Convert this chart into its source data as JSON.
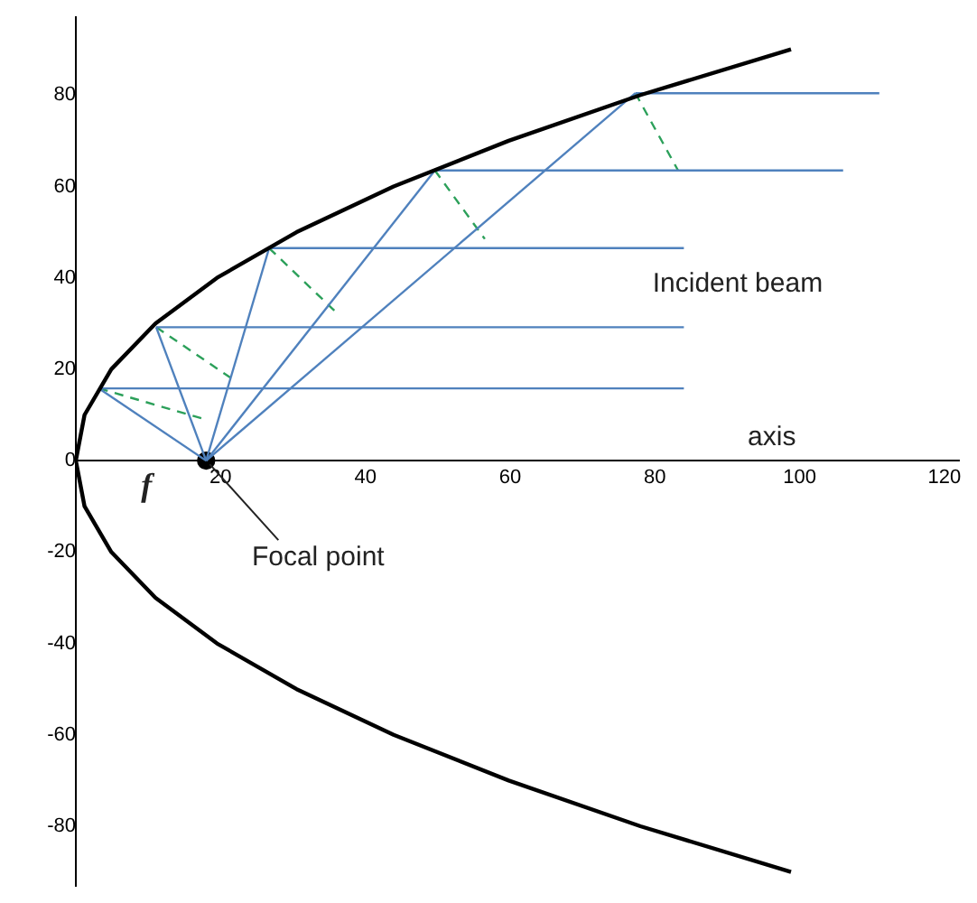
{
  "chart_data": {
    "type": "line",
    "xlim": [
      0,
      122
    ],
    "xticks": [
      20,
      40,
      60,
      80,
      100,
      120
    ],
    "ylim": [
      -93,
      97
    ],
    "yticks": [
      -80,
      -60,
      -40,
      -20,
      0,
      20,
      40,
      60,
      80
    ],
    "grid": false,
    "legend": false,
    "marker": "none",
    "annotations": [
      "Incident beam",
      "axis",
      {
        "text": "Focal point",
        "x": 18,
        "y": 0
      },
      "f"
    ],
    "series": [
      {
        "color": "#000000",
        "x": [
          98.8,
          78.0,
          59.8,
          43.9,
          30.5,
          19.5,
          11.0,
          4.9,
          1.2,
          0,
          1.2,
          4.9,
          11.0,
          19.5,
          30.5,
          43.9,
          59.8,
          78.0,
          98.8
        ],
        "values": [
          -90,
          -80,
          -70,
          -60,
          -50,
          -40,
          -30,
          -20,
          -10,
          0,
          10,
          20,
          30,
          40,
          50,
          60,
          70,
          80,
          90
        ]
      },
      {
        "color": "#4f81bd",
        "x": [
          84,
          3.2
        ],
        "values": [
          15.8,
          15.8
        ]
      },
      {
        "color": "#4f81bd",
        "x": [
          84,
          11.1
        ],
        "values": [
          29.2,
          29.2
        ]
      },
      {
        "color": "#4f81bd",
        "x": [
          84,
          26.7
        ],
        "values": [
          46.5,
          46.5
        ]
      },
      {
        "color": "#4f81bd",
        "x": [
          106,
          49.6
        ],
        "values": [
          63.5,
          63.5
        ]
      },
      {
        "color": "#4f81bd",
        "x": [
          111,
          77.3
        ],
        "values": [
          80.4,
          80.4
        ]
      },
      {
        "color": "#4f81bd",
        "x": [
          3.2,
          18
        ],
        "values": [
          15.8,
          0
        ]
      },
      {
        "color": "#4f81bd",
        "x": [
          11.1,
          18
        ],
        "values": [
          29.2,
          0
        ]
      },
      {
        "color": "#4f81bd",
        "x": [
          26.7,
          18
        ],
        "values": [
          46.5,
          0
        ]
      },
      {
        "color": "#4f81bd",
        "x": [
          49.6,
          18
        ],
        "values": [
          63.5,
          0
        ]
      },
      {
        "color": "#4f81bd",
        "x": [
          77.3,
          18
        ],
        "values": [
          80.4,
          0
        ]
      },
      {
        "color": "#2ca05a",
        "line_style": "dashed",
        "x": [
          3.2,
          17.5
        ],
        "values": [
          15.8,
          9.2
        ]
      },
      {
        "color": "#2ca05a",
        "line_style": "dashed",
        "x": [
          11.1,
          21.5
        ],
        "values": [
          29.2,
          18
        ]
      },
      {
        "color": "#2ca05a",
        "line_style": "dashed",
        "x": [
          26.7,
          35.8
        ],
        "values": [
          46.5,
          32.7
        ]
      },
      {
        "color": "#2ca05a",
        "line_style": "dashed",
        "x": [
          49.6,
          56.5
        ],
        "values": [
          63.5,
          48.5
        ]
      },
      {
        "color": "#2ca05a",
        "line_style": "dashed",
        "x": [
          77.3,
          83.2
        ],
        "values": [
          80.4,
          63.5
        ]
      },
      {
        "type": "scatter",
        "marker": "circle",
        "color": "#000000",
        "x": [
          18
        ],
        "values": [
          0
        ]
      }
    ]
  }
}
